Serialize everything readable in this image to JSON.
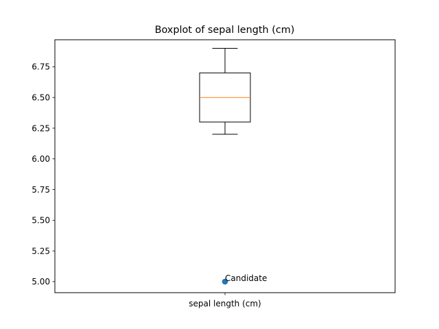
{
  "chart_data": {
    "type": "boxplot",
    "title": "Boxplot of sepal length (cm)",
    "xlabel": "",
    "ylabel": "",
    "categories": [
      "sepal length (cm)"
    ],
    "ylim": [
      4.91,
      6.97
    ],
    "y_ticks": [
      5.0,
      5.25,
      5.5,
      5.75,
      6.0,
      6.25,
      6.5,
      6.75
    ],
    "y_tick_labels": [
      "5.00",
      "5.25",
      "5.50",
      "5.75",
      "6.00",
      "6.25",
      "6.50",
      "6.75"
    ],
    "box": {
      "whisker_low": 6.2,
      "q1": 6.3,
      "median": 6.5,
      "q3": 6.7,
      "whisker_high": 6.9
    },
    "points": [
      {
        "label": "Candidate",
        "x": "sepal length (cm)",
        "y": 5.0
      }
    ],
    "grid": false,
    "colors": {
      "box": "#000000",
      "median": "#ff7f0e",
      "point": "#1f77b4"
    }
  }
}
